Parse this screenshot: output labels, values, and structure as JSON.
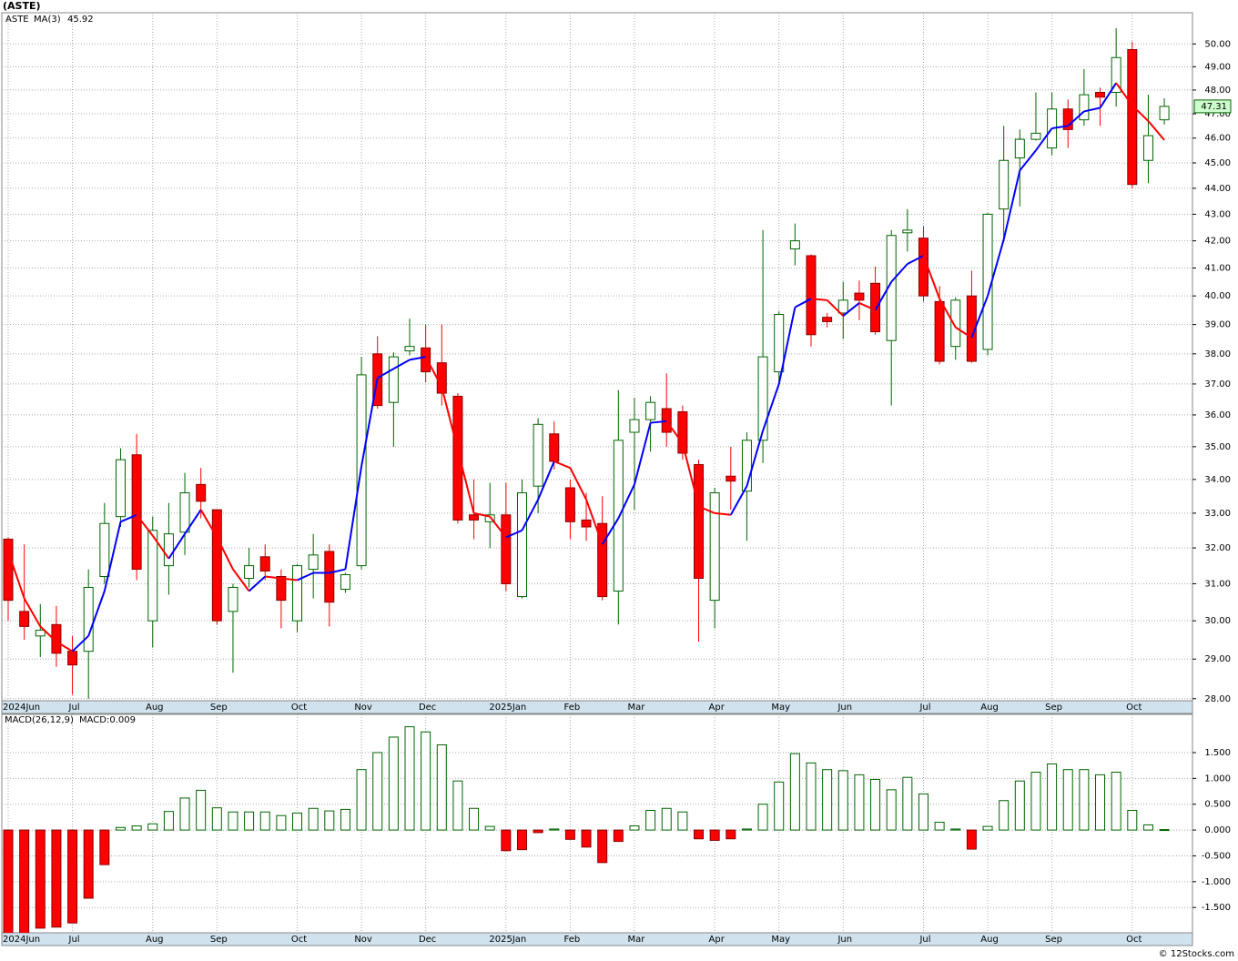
{
  "title": "(ASTE)",
  "footer": "© 12Stocks.com",
  "chart_data": [
    {
      "type": "candlestick",
      "symbol": "ASTE",
      "log_scale": true,
      "grid": true,
      "up_color": "#006400",
      "down_color": "#ff0000",
      "categories": [
        "2024Jun",
        null,
        null,
        null,
        "Jul",
        null,
        null,
        null,
        null,
        "Aug",
        null,
        null,
        null,
        "Sep",
        null,
        null,
        null,
        null,
        "Oct",
        null,
        null,
        null,
        "Nov",
        null,
        null,
        null,
        "Dec",
        null,
        null,
        null,
        null,
        "2025Jan",
        null,
        null,
        null,
        "Feb",
        null,
        null,
        null,
        "Mar",
        null,
        null,
        null,
        null,
        "Apr",
        null,
        null,
        null,
        "May",
        null,
        null,
        null,
        "Jun",
        null,
        null,
        null,
        null,
        "Jul",
        null,
        null,
        null,
        "Aug",
        null,
        null,
        null,
        "Sep",
        null,
        null,
        null,
        null,
        "Oct",
        null,
        null
      ],
      "open": [
        32.25,
        30.25,
        29.6,
        29.9,
        29.2,
        29.2,
        31.2,
        32.9,
        34.75,
        30.0,
        31.5,
        32.45,
        33.85,
        33.1,
        30.25,
        31.15,
        31.75,
        31.2,
        30.0,
        31.4,
        31.9,
        30.85,
        31.5,
        38.0,
        36.4,
        38.1,
        38.2,
        37.7,
        36.6,
        32.95,
        32.75,
        32.95,
        30.65,
        33.8,
        35.4,
        33.75,
        32.8,
        32.7,
        30.8,
        35.45,
        35.85,
        36.2,
        36.1,
        34.45,
        30.55,
        34.1,
        33.65,
        35.2,
        37.4,
        41.7,
        41.45,
        39.25,
        39.4,
        40.1,
        40.45,
        38.45,
        42.3,
        42.1,
        39.8,
        38.25,
        40.0,
        38.15,
        43.2,
        45.2,
        45.95,
        45.6,
        47.2,
        46.75,
        47.9,
        47.9,
        49.75,
        45.1,
        46.75
      ],
      "high": [
        32.3,
        32.1,
        30.45,
        30.4,
        29.6,
        31.4,
        33.3,
        34.95,
        35.4,
        32.9,
        33.3,
        34.2,
        34.35,
        33.1,
        31.0,
        32.0,
        32.1,
        31.4,
        31.55,
        32.4,
        32.1,
        31.3,
        37.9,
        38.6,
        38.05,
        39.2,
        39.0,
        39.0,
        36.7,
        34.0,
        33.9,
        33.9,
        34.0,
        35.9,
        35.8,
        34.0,
        33.6,
        33.5,
        36.8,
        36.55,
        36.6,
        37.35,
        36.3,
        34.6,
        33.75,
        35.0,
        35.45,
        42.4,
        39.45,
        42.65,
        41.5,
        39.4,
        40.5,
        40.55,
        41.05,
        42.4,
        43.2,
        42.55,
        40.35,
        39.95,
        40.9,
        43.05,
        46.5,
        46.35,
        47.9,
        47.9,
        47.6,
        48.9,
        48.1,
        50.7,
        50.1,
        47.8,
        47.65
      ],
      "low": [
        30.0,
        29.5,
        29.05,
        28.8,
        28.1,
        28.0,
        31.0,
        32.6,
        31.1,
        29.3,
        30.7,
        31.8,
        32.85,
        29.9,
        28.65,
        30.9,
        31.1,
        29.8,
        29.7,
        30.6,
        29.85,
        30.75,
        31.4,
        36.2,
        35.0,
        37.95,
        37.05,
        36.3,
        32.7,
        32.25,
        32.0,
        30.8,
        30.6,
        33.0,
        34.3,
        32.25,
        32.2,
        30.55,
        29.9,
        33.1,
        34.85,
        35.0,
        34.6,
        29.45,
        29.8,
        33.1,
        32.2,
        34.5,
        37.0,
        41.1,
        38.25,
        38.9,
        38.5,
        39.15,
        38.65,
        36.3,
        41.6,
        39.8,
        37.65,
        37.8,
        37.7,
        37.95,
        42.0,
        43.3,
        45.9,
        45.3,
        45.6,
        46.5,
        46.5,
        47.3,
        44.0,
        44.2,
        46.55
      ],
      "close": [
        30.55,
        29.85,
        29.75,
        29.15,
        28.85,
        30.9,
        32.7,
        34.6,
        31.4,
        32.5,
        32.4,
        33.6,
        33.35,
        30.0,
        30.9,
        31.5,
        31.35,
        30.55,
        31.5,
        31.8,
        30.5,
        31.25,
        37.3,
        36.3,
        37.9,
        38.25,
        37.4,
        36.7,
        32.8,
        32.8,
        32.95,
        31.0,
        33.6,
        35.7,
        34.55,
        32.75,
        32.6,
        30.65,
        35.2,
        35.85,
        36.4,
        35.45,
        34.8,
        31.15,
        33.6,
        33.95,
        35.2,
        37.9,
        39.35,
        42.0,
        38.65,
        39.1,
        39.85,
        39.85,
        38.75,
        42.2,
        42.4,
        40.0,
        37.75,
        39.85,
        37.75,
        43.0,
        45.1,
        45.95,
        46.2,
        47.2,
        46.35,
        47.8,
        47.7,
        49.4,
        44.15,
        46.1,
        47.31
      ],
      "last_label": "47.31",
      "ma": {
        "name": "MA(3)",
        "value_label": "45.92",
        "up_color": "#0000ff",
        "down_color": "#ff0000",
        "values": [
          31.9,
          30.6,
          29.85,
          29.45,
          29.2,
          29.6,
          30.8,
          32.75,
          32.95,
          32.35,
          31.7,
          32.4,
          33.1,
          32.3,
          31.4,
          30.8,
          31.2,
          31.15,
          31.1,
          31.3,
          31.3,
          31.4,
          34.4,
          37.2,
          37.5,
          37.8,
          37.9,
          36.9,
          34.9,
          33.0,
          32.9,
          32.3,
          32.5,
          33.4,
          34.55,
          34.35,
          33.4,
          32.1,
          32.85,
          33.85,
          35.75,
          35.8,
          35.1,
          33.2,
          33.0,
          32.95,
          33.8,
          35.5,
          37.0,
          39.6,
          39.9,
          39.85,
          39.3,
          39.75,
          39.5,
          40.5,
          41.15,
          41.45,
          39.9,
          38.9,
          38.55,
          40.0,
          42.05,
          44.7,
          45.5,
          46.4,
          46.5,
          47.1,
          47.25,
          48.3,
          47.35,
          46.7,
          45.92
        ]
      },
      "ylim": [
        27.95,
        51.4
      ],
      "yticks": [
        {
          "value": 28,
          "label": "28.00"
        },
        {
          "value": 29,
          "label": "29.00"
        },
        {
          "value": 30,
          "label": "30.00"
        },
        {
          "value": 31,
          "label": "31.00"
        },
        {
          "value": 32,
          "label": "32.00"
        },
        {
          "value": 33,
          "label": "33.00"
        },
        {
          "value": 34,
          "label": "34.00"
        },
        {
          "value": 35,
          "label": "35.00"
        },
        {
          "value": 36,
          "label": "36.00"
        },
        {
          "value": 37,
          "label": "37.00"
        },
        {
          "value": 38,
          "label": "38.00"
        },
        {
          "value": 39,
          "label": "39.00"
        },
        {
          "value": 40,
          "label": "40.00"
        },
        {
          "value": 41,
          "label": "41.00"
        },
        {
          "value": 42,
          "label": "42.00"
        },
        {
          "value": 43,
          "label": "43.00"
        },
        {
          "value": 44,
          "label": "44.00"
        },
        {
          "value": 45,
          "label": "45.00"
        },
        {
          "value": 46,
          "label": "46.00"
        },
        {
          "value": 47,
          "label": "47.00"
        },
        {
          "value": 48,
          "label": "48.00"
        },
        {
          "value": 49,
          "label": "49.00"
        },
        {
          "value": 50,
          "label": "50.00"
        }
      ]
    },
    {
      "type": "macd_bar",
      "name": "MACD(26,12,9)",
      "value_label": "MACD:0.009",
      "grid": true,
      "up_color": "#006400",
      "down_color": "#ff0000",
      "categories": [
        "2024Jun",
        null,
        null,
        null,
        "Jul",
        null,
        null,
        null,
        null,
        "Aug",
        null,
        null,
        null,
        "Sep",
        null,
        null,
        null,
        null,
        "Oct",
        null,
        null,
        null,
        "Nov",
        null,
        null,
        null,
        "Dec",
        null,
        null,
        null,
        null,
        "2025Jan",
        null,
        null,
        null,
        "Feb",
        null,
        null,
        null,
        "Mar",
        null,
        null,
        null,
        null,
        "Apr",
        null,
        null,
        null,
        "May",
        null,
        null,
        null,
        "Jun",
        null,
        null,
        null,
        null,
        "Jul",
        null,
        null,
        null,
        "Aug",
        null,
        null,
        null,
        "Sep",
        null,
        null,
        null,
        null,
        "Oct",
        null,
        null
      ],
      "values": [
        -2.05,
        -2.05,
        -1.9,
        -1.88,
        -1.8,
        -1.32,
        -0.67,
        0.05,
        0.08,
        0.12,
        0.36,
        0.62,
        0.77,
        0.43,
        0.35,
        0.35,
        0.35,
        0.28,
        0.33,
        0.42,
        0.37,
        0.4,
        1.17,
        1.5,
        1.8,
        2.0,
        1.9,
        1.65,
        0.95,
        0.42,
        0.07,
        -0.4,
        -0.38,
        -0.05,
        0.02,
        -0.18,
        -0.33,
        -0.63,
        -0.22,
        0.08,
        0.38,
        0.42,
        0.35,
        -0.17,
        -0.2,
        -0.17,
        0.02,
        0.5,
        0.93,
        1.48,
        1.3,
        1.17,
        1.15,
        1.07,
        0.98,
        0.78,
        1.02,
        0.7,
        0.15,
        0.02,
        -0.37,
        0.07,
        0.57,
        0.95,
        1.12,
        1.28,
        1.17,
        1.17,
        1.07,
        1.12,
        0.38,
        0.1,
        0.009
      ],
      "ylim": [
        -1.99,
        2.24
      ],
      "yticks": [
        {
          "value": -1.5,
          "label": "-1.500"
        },
        {
          "value": -1,
          "label": "-1.000"
        },
        {
          "value": -0.5,
          "label": "-0.500"
        },
        {
          "value": 0,
          "label": "0.000"
        },
        {
          "value": 0.5,
          "label": "0.500"
        },
        {
          "value": 1,
          "label": "1.000"
        },
        {
          "value": 1.5,
          "label": "1.500"
        }
      ]
    }
  ]
}
